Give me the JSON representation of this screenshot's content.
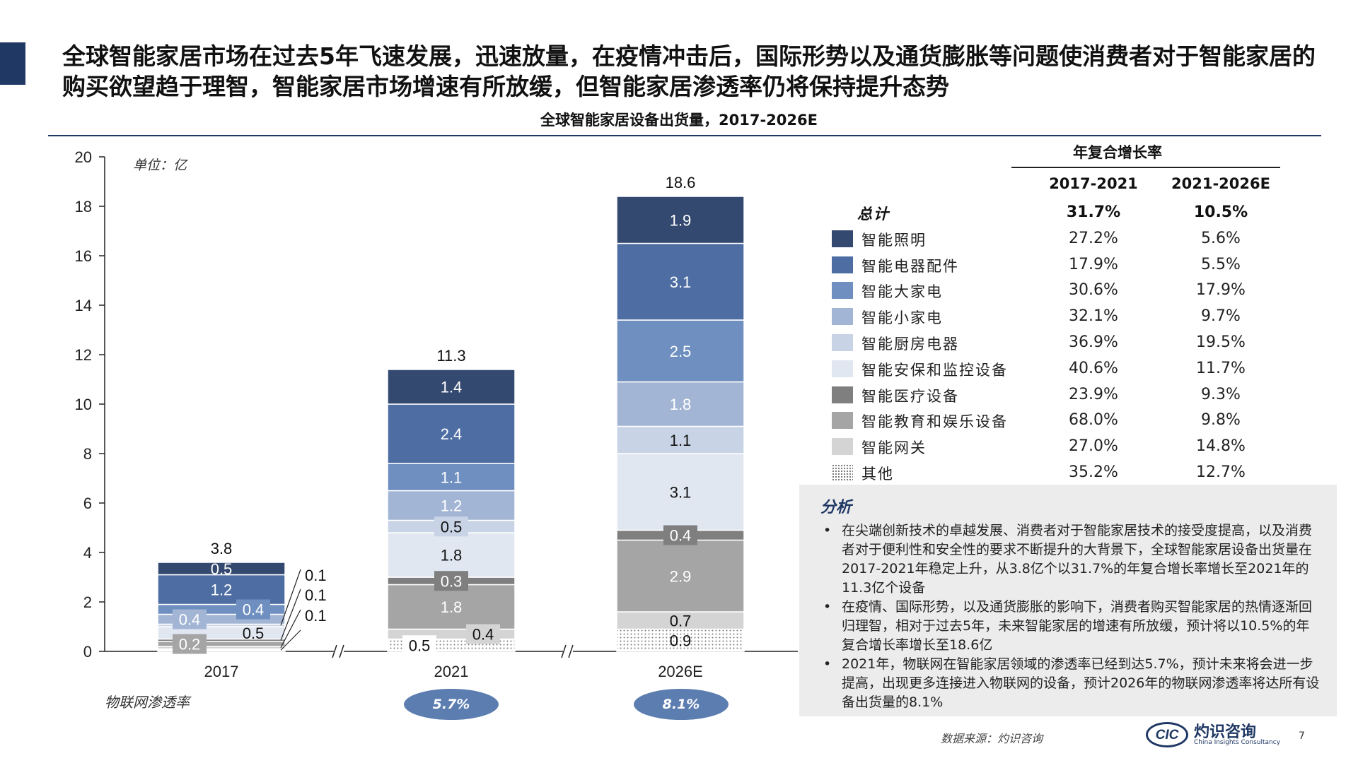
{
  "headline": "全球智能家居市场在过去5年飞速发展，迅速放量，在疫情冲击后，国际形势以及通货膨胀等问题使消费者对于智能家居的购买欲望趋于理智，智能家居市场增速有所放缓，但智能家居渗透率仍将保持提升态势",
  "subtitle": "全球智能家居设备出货量，2017-2026E",
  "chart_data": {
    "type": "bar",
    "stacked": true,
    "unit": "单位：亿",
    "categories": [
      "2017",
      "2021",
      "2026E"
    ],
    "ylim": [
      0,
      20
    ],
    "yticks": [
      0,
      2,
      4,
      6,
      8,
      10,
      12,
      14,
      16,
      18,
      20
    ],
    "totals": [
      "3.8",
      "11.3",
      "18.6"
    ],
    "series": [
      {
        "name": "其他",
        "values": [
          0.1,
          0.5,
          0.9
        ],
        "labels": [
          "",
          "0.5",
          "0.9"
        ],
        "color": "#ffffff",
        "pattern": "dots"
      },
      {
        "name": "智能网关",
        "values": [
          0.1,
          0.4,
          0.7
        ],
        "labels": [
          "0.1",
          "0.4",
          "0.7"
        ],
        "color": "#d4d4d4"
      },
      {
        "name": "智能教育和娱乐设备",
        "values": [
          0.2,
          1.8,
          2.9
        ],
        "labels": [
          "0.2",
          "1.8",
          "2.9"
        ],
        "color": "#a5a5a5"
      },
      {
        "name": "智能医疗设备",
        "values": [
          0.1,
          0.3,
          0.4
        ],
        "labels": [
          "0.1",
          "0.3",
          "0.4"
        ],
        "color": "#7f7f7f"
      },
      {
        "name": "智能安保和监控设备",
        "values": [
          0.5,
          1.8,
          3.1
        ],
        "labels": [
          "0.5",
          "1.8",
          "3.1"
        ],
        "color": "#e1e7f1"
      },
      {
        "name": "智能厨房电器",
        "values": [
          0.1,
          0.5,
          1.1
        ],
        "labels": [
          "0.1",
          "0.5",
          "1.1"
        ],
        "color": "#c8d3e6"
      },
      {
        "name": "智能小家电",
        "values": [
          0.4,
          1.2,
          1.8
        ],
        "labels": [
          "0.4",
          "1.2",
          "1.8"
        ],
        "color": "#a3b5d4"
      },
      {
        "name": "智能大家电",
        "values": [
          0.4,
          1.1,
          2.5
        ],
        "labels": [
          "0.4",
          "1.1",
          "2.5"
        ],
        "color": "#6e8fbf"
      },
      {
        "name": "智能电器配件",
        "values": [
          1.2,
          2.4,
          3.1
        ],
        "labels": [
          "1.2",
          "2.4",
          "3.1"
        ],
        "color": "#4d6da3"
      },
      {
        "name": "智能照明",
        "values": [
          0.5,
          1.4,
          1.9
        ],
        "labels": [
          "0.5",
          "1.4",
          "1.9"
        ],
        "color": "#34496f"
      }
    ]
  },
  "iot": {
    "label": "物联网渗透率",
    "values": [
      "5.7%",
      "8.1%"
    ]
  },
  "cagr": {
    "title": "年复合增长率",
    "headers": [
      "2017-2021",
      "2021-2026E"
    ],
    "rows": [
      {
        "label": "总计",
        "v1": "31.7%",
        "v2": "10.5%",
        "total": true
      },
      {
        "label": "智能照明",
        "v1": "27.2%",
        "v2": "5.6%",
        "color": "#34496f"
      },
      {
        "label": "智能电器配件",
        "v1": "17.9%",
        "v2": "5.5%",
        "color": "#4d6da3"
      },
      {
        "label": "智能大家电",
        "v1": "30.6%",
        "v2": "17.9%",
        "color": "#6e8fbf"
      },
      {
        "label": "智能小家电",
        "v1": "32.1%",
        "v2": "9.7%",
        "color": "#a3b5d4"
      },
      {
        "label": "智能厨房电器",
        "v1": "36.9%",
        "v2": "19.5%",
        "color": "#c8d3e6"
      },
      {
        "label": "智能安保和监控设备",
        "v1": "40.6%",
        "v2": "11.7%",
        "color": "#e1e7f1"
      },
      {
        "label": "智能医疗设备",
        "v1": "23.9%",
        "v2": "9.3%",
        "color": "#7f7f7f"
      },
      {
        "label": "智能教育和娱乐设备",
        "v1": "68.0%",
        "v2": "9.8%",
        "color": "#a5a5a5"
      },
      {
        "label": "智能网关",
        "v1": "27.0%",
        "v2": "14.8%",
        "color": "#d4d4d4"
      },
      {
        "label": "其他",
        "v1": "35.2%",
        "v2": "12.7%",
        "pattern": "dots"
      }
    ]
  },
  "analysis": {
    "title": "分析",
    "bullets": [
      "在尖端创新技术的卓越发展、消费者对于智能家居技术的接受度提高，以及消费者对于便利性和安全性的要求不断提升的大背景下，全球智能家居设备出货量在2017-2021年稳定上升，从3.8亿个以31.7%的年复合增长率增长至2021年的11.3亿个设备",
      "在疫情、国际形势，以及通货膨胀的影响下，消费者购买智能家居的热情逐渐回归理智，相对于过去5年，未来智能家居的增速有所放缓，预计将以10.5%的年复合增长率增长至18.6亿",
      "2021年，物联网在智能家居领域的渗透率已经到达5.7%，预计未来将会进一步提高，出现更多连接进入物联网的设备，预计2026年的物联网渗透率将达所有设备出货量的8.1%"
    ]
  },
  "footer": {
    "source": "数据来源：灼识咨询",
    "logo_mark": "CIC",
    "logo_cn": "灼识咨询",
    "logo_en": "China Insights Consultancy",
    "page": "7"
  }
}
